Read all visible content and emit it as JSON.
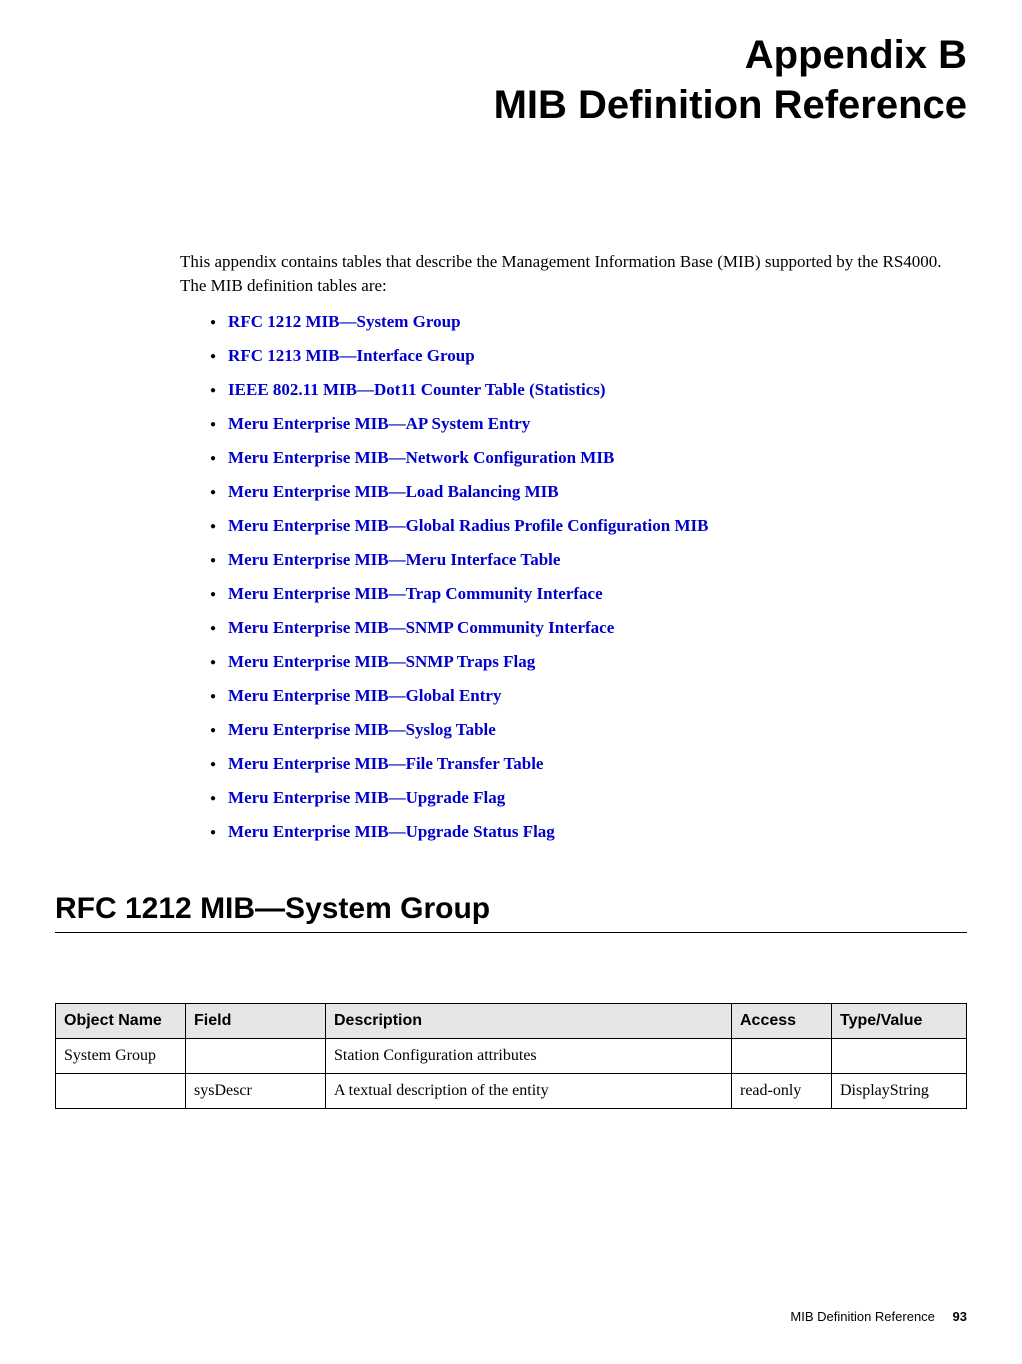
{
  "title_line1": "Appendix B",
  "title_line2": "MIB Definition Reference",
  "intro": "This appendix contains tables that describe the Management Information Base (MIB) supported by the RS4000. The MIB definition tables are:",
  "links": [
    "RFC 1212 MIB—System Group",
    "RFC 1213 MIB—Interface Group",
    "IEEE 802.11 MIB—Dot11 Counter Table (Statistics)",
    "Meru Enterprise MIB—AP System Entry",
    "Meru Enterprise MIB—Network Configuration MIB",
    "Meru Enterprise MIB—Load Balancing MIB",
    "Meru Enterprise MIB—Global Radius Profile Configuration MIB",
    "Meru Enterprise MIB—Meru Interface Table",
    "Meru Enterprise MIB—Trap Community Interface",
    "Meru Enterprise MIB—SNMP Community Interface",
    "Meru Enterprise MIB—SNMP Traps Flag",
    "Meru Enterprise MIB—Global Entry",
    "Meru Enterprise MIB—Syslog Table",
    "Meru Enterprise MIB—File Transfer Table",
    "Meru Enterprise MIB—Upgrade Flag",
    "Meru Enterprise MIB—Upgrade Status Flag"
  ],
  "section_heading": "RFC 1212 MIB—System Group",
  "table": {
    "columns": [
      "Object Name",
      "Field",
      "Description",
      "Access",
      "Type/Value"
    ],
    "col_widths": [
      "130px",
      "140px",
      "auto",
      "100px",
      "135px"
    ],
    "header_bg": "#e6e6e6",
    "rows": [
      [
        "System Group",
        "",
        "Station Configuration attributes",
        "",
        ""
      ],
      [
        "",
        "sysDescr",
        "A textual description of the entity",
        "read-only",
        "DisplayString"
      ]
    ]
  },
  "footer_text": "MIB Definition Reference",
  "footer_page": "93",
  "colors": {
    "link_color": "#0000cc",
    "text_color": "#000000",
    "bg": "#ffffff"
  }
}
